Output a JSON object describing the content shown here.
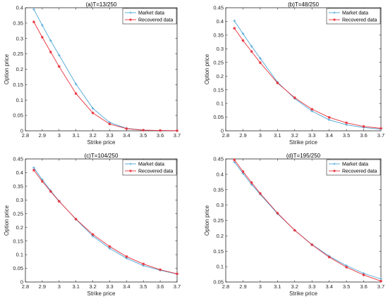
{
  "colors": {
    "market": "#4da6d6",
    "recovered": "#e8303a",
    "axis": "#262626",
    "grid": "#ffffff"
  },
  "chart_data": [
    {
      "type": "line",
      "title": "(a)T=13/250",
      "xlabel": "Strike price",
      "ylabel": "Option price",
      "xlim": [
        2.8,
        3.7
      ],
      "ylim": [
        0,
        0.4
      ],
      "xticks": [
        2.8,
        2.9,
        3.0,
        3.1,
        3.2,
        3.3,
        3.4,
        3.5,
        3.6,
        3.7
      ],
      "xtick_labels": [
        "2.8",
        "2.9",
        "3",
        "3.1",
        "3.2",
        "3.3",
        "3.4",
        "3.5",
        "3.6",
        "3.7"
      ],
      "yticks": [
        0,
        0.05,
        0.1,
        0.15,
        0.2,
        0.25,
        0.3,
        0.35,
        0.4
      ],
      "ytick_labels": [
        "0",
        "0.05",
        "0.1",
        "0.15",
        "0.2",
        "0.25",
        "0.3",
        "0.35",
        "0.4"
      ],
      "legend": "top-right",
      "x": [
        2.85,
        2.9,
        2.95,
        3.0,
        3.1,
        3.2,
        3.3,
        3.4,
        3.5,
        3.6,
        3.7
      ],
      "series": [
        {
          "name": "Market data",
          "marker": "+",
          "values": [
            0.395,
            0.343,
            0.293,
            0.246,
            0.152,
            0.073,
            0.027,
            0.008,
            0.002,
            0.001,
            0.0005
          ]
        },
        {
          "name": "Recovered data",
          "marker": "*",
          "values": [
            0.354,
            0.304,
            0.256,
            0.209,
            0.121,
            0.058,
            0.022,
            0.007,
            0.002,
            0.001,
            0.0003
          ]
        }
      ]
    },
    {
      "type": "line",
      "title": "(b)T=48/250",
      "xlabel": "Strike price",
      "ylabel": "Option price",
      "xlim": [
        2.8,
        3.7
      ],
      "ylim": [
        0,
        0.45
      ],
      "xticks": [
        2.8,
        2.9,
        3.0,
        3.1,
        3.2,
        3.3,
        3.4,
        3.5,
        3.6,
        3.7
      ],
      "xtick_labels": [
        "2.8",
        "2.9",
        "3",
        "3.1",
        "3.2",
        "3.3",
        "3.4",
        "3.5",
        "3.6",
        "3.7"
      ],
      "yticks": [
        0,
        0.05,
        0.1,
        0.15,
        0.2,
        0.25,
        0.3,
        0.35,
        0.4,
        0.45
      ],
      "ytick_labels": [
        "0",
        "0.05",
        "0.1",
        "0.15",
        "0.2",
        "0.25",
        "0.3",
        "0.35",
        "0.4",
        "0.45"
      ],
      "legend": "top-right",
      "x": [
        2.85,
        2.9,
        2.95,
        3.0,
        3.1,
        3.2,
        3.3,
        3.4,
        3.5,
        3.6,
        3.7
      ],
      "series": [
        {
          "name": "Market data",
          "marker": "+",
          "values": [
            0.402,
            0.355,
            0.309,
            0.265,
            0.178,
            0.118,
            0.072,
            0.04,
            0.022,
            0.012,
            0.006
          ]
        },
        {
          "name": "Recovered data",
          "marker": "*",
          "values": [
            0.375,
            0.33,
            0.29,
            0.249,
            0.175,
            0.121,
            0.079,
            0.049,
            0.029,
            0.016,
            0.009
          ]
        }
      ]
    },
    {
      "type": "line",
      "title": "(c)T=104/250",
      "xlabel": "Strike price",
      "ylabel": "Option price",
      "xlim": [
        2.8,
        3.7
      ],
      "ylim": [
        0,
        0.45
      ],
      "xticks": [
        2.8,
        2.9,
        3.0,
        3.1,
        3.2,
        3.3,
        3.4,
        3.5,
        3.6,
        3.7
      ],
      "xtick_labels": [
        "2.8",
        "2.9",
        "3",
        "3.1",
        "3.2",
        "3.3",
        "3.4",
        "3.5",
        "3.6",
        "3.7"
      ],
      "yticks": [
        0,
        0.05,
        0.1,
        0.15,
        0.2,
        0.25,
        0.3,
        0.35,
        0.4,
        0.45
      ],
      "ytick_labels": [
        "0",
        "0.05",
        "0.1",
        "0.15",
        "0.2",
        "0.25",
        "0.3",
        "0.35",
        "0.4",
        "0.45"
      ],
      "legend": "top-right",
      "x": [
        2.85,
        2.9,
        2.95,
        3.0,
        3.1,
        3.2,
        3.3,
        3.4,
        3.5,
        3.6,
        3.7
      ],
      "series": [
        {
          "name": "Market data",
          "marker": "+",
          "values": [
            0.418,
            0.374,
            0.334,
            0.296,
            0.229,
            0.168,
            0.123,
            0.087,
            0.06,
            0.043,
            0.029
          ]
        },
        {
          "name": "Recovered data",
          "marker": "*",
          "values": [
            0.409,
            0.368,
            0.331,
            0.295,
            0.23,
            0.174,
            0.13,
            0.093,
            0.066,
            0.045,
            0.03
          ]
        }
      ]
    },
    {
      "type": "line",
      "title": "(d)T=195/250",
      "xlabel": "Strike price",
      "ylabel": "Option price",
      "xlim": [
        2.8,
        3.7
      ],
      "ylim": [
        0.05,
        0.45
      ],
      "xticks": [
        2.8,
        2.9,
        3.0,
        3.1,
        3.2,
        3.3,
        3.4,
        3.5,
        3.6,
        3.7
      ],
      "xtick_labels": [
        "2.8",
        "2.9",
        "3",
        "3.1",
        "3.2",
        "3.3",
        "3.4",
        "3.5",
        "3.6",
        "3.7"
      ],
      "yticks": [
        0.05,
        0.1,
        0.15,
        0.2,
        0.25,
        0.3,
        0.35,
        0.4,
        0.45
      ],
      "ytick_labels": [
        "0.05",
        "0.1",
        "0.15",
        "0.2",
        "0.25",
        "0.3",
        "0.35",
        "0.4",
        "0.45"
      ],
      "legend": "top-right",
      "x": [
        2.85,
        2.9,
        2.95,
        3.0,
        3.1,
        3.2,
        3.3,
        3.4,
        3.5,
        3.6,
        3.7
      ],
      "series": [
        {
          "name": "Market data",
          "marker": "+",
          "values": [
            0.44,
            0.403,
            0.367,
            0.335,
            0.272,
            0.218,
            0.172,
            0.134,
            0.103,
            0.078,
            0.06
          ]
        },
        {
          "name": "Recovered data",
          "marker": "*",
          "values": [
            0.447,
            0.409,
            0.373,
            0.338,
            0.274,
            0.218,
            0.171,
            0.131,
            0.098,
            0.073,
            0.053
          ]
        }
      ]
    }
  ]
}
